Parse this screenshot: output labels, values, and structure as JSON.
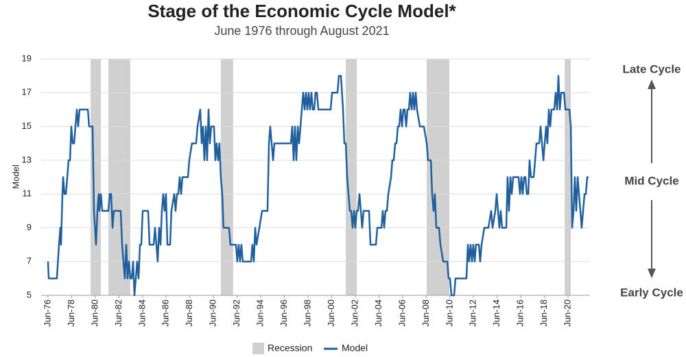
{
  "chart_data": {
    "type": "line",
    "title": "Stage of the Economic Cycle Model*",
    "subtitle": "June 1976 through August 2021",
    "ylabel": "Model",
    "annotations": [
      "Late Cycle",
      "Mid Cycle",
      "Early Cycle"
    ],
    "xlim": [
      1975.84,
      2022.27
    ],
    "ylim": [
      5,
      19
    ],
    "yticks": [
      5,
      7,
      9,
      11,
      13,
      15,
      17,
      19
    ],
    "xticks": [
      {
        "value": 1976.42,
        "label": "Jun-76"
      },
      {
        "value": 1978.42,
        "label": "Jun-78"
      },
      {
        "value": 1980.42,
        "label": "Jun-80"
      },
      {
        "value": 1982.42,
        "label": "Jun-82"
      },
      {
        "value": 1984.42,
        "label": "Jun-84"
      },
      {
        "value": 1986.42,
        "label": "Jun-86"
      },
      {
        "value": 1988.42,
        "label": "Jun-88"
      },
      {
        "value": 1990.42,
        "label": "Jun-90"
      },
      {
        "value": 1992.42,
        "label": "Jun-92"
      },
      {
        "value": 1994.42,
        "label": "Jun-94"
      },
      {
        "value": 1996.42,
        "label": "Jun-96"
      },
      {
        "value": 1998.42,
        "label": "Jun-98"
      },
      {
        "value": 2000.42,
        "label": "Jun-00"
      },
      {
        "value": 2002.42,
        "label": "Jun-02"
      },
      {
        "value": 2004.42,
        "label": "Jun-04"
      },
      {
        "value": 2006.42,
        "label": "Jun-06"
      },
      {
        "value": 2008.42,
        "label": "Jun-08"
      },
      {
        "value": 2010.42,
        "label": "Jun-10"
      },
      {
        "value": 2012.42,
        "label": "Jun-12"
      },
      {
        "value": 2014.42,
        "label": "Jun-14"
      },
      {
        "value": 2016.42,
        "label": "Jun-16"
      },
      {
        "value": 2018.42,
        "label": "Jun-18"
      },
      {
        "value": 2020.42,
        "label": "Jun-20"
      }
    ],
    "grid": true,
    "recessions": {
      "name": "Recession",
      "color": "#d0d0d0",
      "spans": [
        [
          1980.02,
          1980.89
        ],
        [
          1981.53,
          1983.38
        ],
        [
          1991.04,
          1992.08
        ],
        [
          2001.61,
          2002.54
        ],
        [
          2008.46,
          2010.37
        ],
        [
          2020.13,
          2020.65
        ]
      ]
    },
    "x": [
      1976.42,
      1976.48,
      1977.17,
      1977.35,
      1977.46,
      1977.52,
      1977.64,
      1977.7,
      1977.81,
      1977.93,
      1978.05,
      1978.16,
      1978.28,
      1978.39,
      1978.51,
      1978.63,
      1978.74,
      1978.86,
      1978.97,
      1979.09,
      1979.79,
      1979.9,
      1980.19,
      1980.31,
      1980.48,
      1980.6,
      1980.71,
      1980.77,
      1980.89,
      1981.01,
      1981.53,
      1981.64,
      1981.76,
      1981.88,
      1981.99,
      1982.57,
      1982.69,
      1982.8,
      1982.92,
      1983.04,
      1983.15,
      1983.27,
      1983.38,
      1983.5,
      1983.62,
      1983.73,
      1983.85,
      1983.96,
      1984.08,
      1984.2,
      1984.31,
      1984.43,
      1984.89,
      1985.01,
      1985.36,
      1985.47,
      1985.59,
      1985.7,
      1985.82,
      1985.94,
      1986.05,
      1986.17,
      1986.28,
      1986.4,
      1986.52,
      1986.75,
      1986.86,
      1987.1,
      1987.21,
      1987.33,
      1987.44,
      1987.56,
      1987.68,
      1987.79,
      1988.26,
      1988.37,
      1988.6,
      1988.95,
      1989.07,
      1989.3,
      1989.42,
      1989.53,
      1989.65,
      1989.77,
      1989.88,
      1990.0,
      1990.11,
      1990.23,
      1990.46,
      1990.58,
      1990.69,
      1990.81,
      1990.92,
      1991.04,
      1991.16,
      1991.27,
      1991.74,
      1991.85,
      1992.32,
      1992.43,
      1992.55,
      1992.67,
      1992.78,
      1992.9,
      1993.6,
      1993.71,
      1993.83,
      1993.95,
      1994.06,
      1994.3,
      1994.53,
      1994.99,
      1995.11,
      1995.22,
      1995.34,
      1995.46,
      1995.57,
      1996.97,
      1997.08,
      1997.2,
      1997.31,
      1997.43,
      1997.55,
      1997.66,
      1997.78,
      1997.89,
      1998.01,
      1998.13,
      1998.24,
      1998.36,
      1998.47,
      1998.59,
      1998.71,
      1998.82,
      1998.94,
      1999.05,
      1999.17,
      1999.29,
      2000.33,
      2000.45,
      2000.91,
      2001.03,
      2001.2,
      2001.38,
      2001.49,
      2001.61,
      2001.73,
      2001.84,
      2001.96,
      2002.07,
      2002.19,
      2002.31,
      2002.42,
      2002.54,
      2002.65,
      2002.77,
      2002.89,
      2003.0,
      2003.12,
      2003.58,
      2003.7,
      2004.16,
      2004.28,
      2004.63,
      2004.74,
      2004.86,
      2004.97,
      2005.09,
      2005.21,
      2005.44,
      2005.55,
      2005.67,
      2005.79,
      2005.9,
      2006.02,
      2006.13,
      2006.25,
      2006.37,
      2006.48,
      2006.6,
      2006.72,
      2006.83,
      2006.95,
      2007.06,
      2007.18,
      2007.3,
      2007.41,
      2007.53,
      2007.64,
      2007.88,
      2008.22,
      2008.46,
      2008.57,
      2008.81,
      2008.92,
      2009.04,
      2009.15,
      2009.27,
      2009.5,
      2009.62,
      2009.85,
      2010.2,
      2010.31,
      2010.43,
      2010.55,
      2010.78,
      2010.89,
      2011.82,
      2011.94,
      2012.05,
      2012.17,
      2012.29,
      2012.4,
      2012.52,
      2012.63,
      2012.87,
      2012.98,
      2013.1,
      2013.33,
      2013.68,
      2013.91,
      2014.03,
      2014.26,
      2014.38,
      2014.49,
      2014.61,
      2014.72,
      2014.84,
      2015.19,
      2015.3,
      2015.42,
      2015.54,
      2015.65,
      2015.77,
      2016.23,
      2016.35,
      2016.47,
      2016.58,
      2016.7,
      2016.81,
      2016.93,
      2017.05,
      2017.16,
      2017.28,
      2017.51,
      2017.63,
      2017.74,
      2017.98,
      2018.09,
      2018.21,
      2018.33,
      2018.44,
      2018.56,
      2018.67,
      2018.79,
      2018.91,
      2019.02,
      2019.25,
      2019.37,
      2019.49,
      2019.6,
      2019.72,
      2019.84,
      2020.07,
      2020.19,
      2020.53,
      2020.65,
      2020.76,
      2020.88,
      2020.99,
      2021.11,
      2021.23,
      2021.34,
      2021.46,
      2021.57,
      2021.69,
      2021.81,
      2021.92,
      2022.04,
      2022.15
    ],
    "series": [
      {
        "name": "Model",
        "color": "#1f5f9e",
        "values": [
          7,
          6,
          6,
          8,
          9,
          8,
          11,
          12,
          11,
          11,
          12,
          13,
          13,
          15,
          14,
          14,
          15,
          16,
          15,
          16,
          16,
          15,
          15,
          10,
          8,
          10,
          11,
          10,
          11,
          10,
          10,
          11,
          11,
          9,
          10,
          10,
          8,
          7,
          6,
          8,
          6,
          7,
          6,
          6,
          7,
          5,
          6,
          7,
          6,
          8,
          8,
          10,
          10,
          8,
          8,
          9,
          8,
          7,
          9,
          8,
          10,
          11,
          10,
          11,
          8,
          8,
          10,
          11,
          10,
          11,
          11,
          12,
          11,
          12,
          12,
          13,
          14,
          14,
          15,
          16,
          14,
          15,
          13,
          15,
          13,
          16,
          14,
          15,
          15,
          13,
          14,
          13,
          14,
          12,
          11,
          9,
          9,
          8,
          8,
          7,
          8,
          7,
          8,
          7,
          7,
          8,
          7,
          9,
          8,
          9,
          10,
          10,
          14,
          15,
          14,
          13,
          14,
          14,
          15,
          13,
          15,
          13,
          15,
          14,
          15,
          16,
          17,
          16,
          17,
          16,
          17,
          16,
          17,
          16,
          16,
          17,
          17,
          16,
          16,
          17,
          17,
          18,
          18,
          16,
          14,
          14,
          12,
          11,
          10,
          10,
          9,
          10,
          9,
          10,
          10,
          11,
          10,
          9,
          10,
          10,
          8,
          8,
          9,
          9,
          10,
          9,
          10,
          10,
          11,
          12,
          13,
          13,
          14,
          14,
          15,
          15,
          16,
          15,
          16,
          16,
          15,
          16,
          16,
          17,
          16,
          17,
          16,
          17,
          16,
          15,
          15,
          14,
          13,
          13,
          11,
          10,
          11,
          9,
          9,
          8,
          7,
          7,
          6,
          6,
          5,
          5,
          6,
          6,
          8,
          7,
          8,
          7,
          8,
          7,
          8,
          8,
          7,
          8,
          9,
          9,
          10,
          9,
          10,
          11,
          10,
          9,
          10,
          9,
          9,
          12,
          10,
          12,
          11,
          12,
          12,
          11,
          12,
          11,
          12,
          12,
          11,
          11,
          13,
          12,
          12,
          13,
          14,
          14,
          15,
          14,
          13,
          14,
          15,
          14,
          16,
          15,
          16,
          16,
          17,
          16,
          18,
          16,
          17,
          17,
          16,
          16,
          15,
          9,
          10,
          12,
          10,
          12,
          11,
          10,
          9,
          10,
          11,
          11,
          12,
          12
        ]
      }
    ]
  }
}
